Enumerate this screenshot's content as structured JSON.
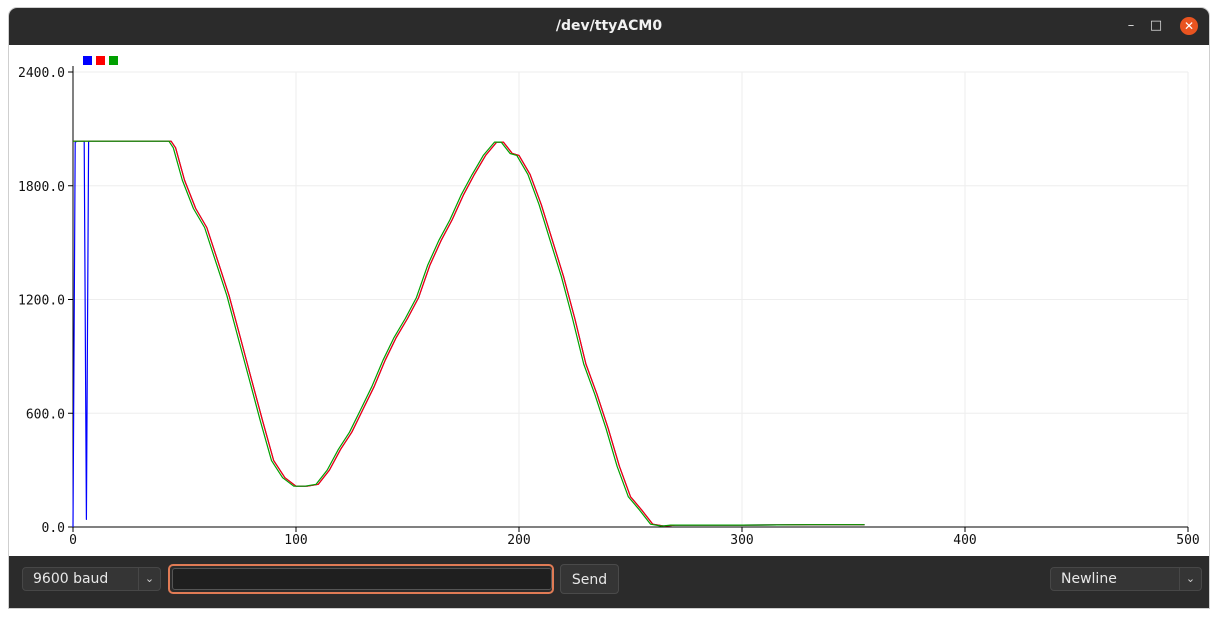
{
  "window": {
    "title": "/dev/ttyACM0",
    "controls": {
      "minimize": "–",
      "maximize": "□",
      "close": "✕"
    }
  },
  "toolbar": {
    "baud_value": "9600 baud",
    "line_ending_value": "Newline",
    "send_label": "Send",
    "message_value": ""
  },
  "icons": {
    "dropdown": "chevron-down-icon"
  },
  "chart_data": {
    "type": "line",
    "xlim": [
      0,
      500
    ],
    "ylim": [
      0,
      2400
    ],
    "x_ticks": [
      0,
      100,
      200,
      300,
      400,
      500
    ],
    "y_ticks": [
      0,
      600,
      1200,
      1800,
      2400
    ],
    "x_tick_labels": [
      "0",
      "100",
      "200",
      "300",
      "400",
      "500"
    ],
    "y_tick_labels": [
      "0.0",
      "600.0",
      "1200.0",
      "1800.0",
      "2400.0"
    ],
    "grid": true,
    "legend": "top-left",
    "series": [
      {
        "color": "#0000ff",
        "x": [
          0,
          1,
          2,
          5,
          6,
          7,
          10,
          20,
          30,
          40,
          44,
          46,
          50,
          55,
          60,
          65,
          70,
          75,
          80,
          85,
          90,
          95,
          100,
          105,
          110,
          115,
          120,
          125,
          130,
          135,
          140,
          145,
          150,
          155,
          160,
          165,
          170,
          175,
          180,
          185,
          190,
          193,
          197,
          200,
          205,
          210,
          215,
          220,
          225,
          230,
          235,
          240,
          245,
          250,
          255,
          260,
          265,
          270,
          300,
          330,
          355
        ],
        "y": [
          0,
          2030,
          2035,
          2035,
          40,
          2035,
          2035,
          2035,
          2035,
          2035,
          2035,
          2000,
          1830,
          1680,
          1580,
          1400,
          1220,
          1000,
          780,
          560,
          350,
          260,
          215,
          215,
          225,
          300,
          410,
          500,
          620,
          740,
          880,
          1000,
          1100,
          1210,
          1380,
          1510,
          1620,
          1750,
          1860,
          1960,
          2030,
          2030,
          1970,
          1960,
          1860,
          1700,
          1510,
          1320,
          1100,
          860,
          700,
          520,
          320,
          160,
          90,
          15,
          5,
          10,
          10,
          12,
          12
        ]
      },
      {
        "color": "#ff0000",
        "x": [
          0,
          1,
          2,
          10,
          20,
          30,
          40,
          44,
          46,
          50,
          55,
          60,
          65,
          70,
          75,
          80,
          85,
          90,
          95,
          100,
          105,
          110,
          115,
          120,
          125,
          130,
          135,
          140,
          145,
          150,
          155,
          160,
          165,
          170,
          175,
          180,
          185,
          190,
          193,
          197,
          200,
          205,
          210,
          215,
          220,
          225,
          230,
          235,
          240,
          245,
          250,
          255,
          260,
          265,
          270,
          300,
          330,
          355
        ],
        "y": [
          2035,
          2035,
          2035,
          2035,
          2035,
          2035,
          2035,
          2035,
          2000,
          1830,
          1680,
          1580,
          1400,
          1220,
          1000,
          780,
          560,
          350,
          260,
          215,
          215,
          225,
          300,
          410,
          500,
          620,
          740,
          880,
          1000,
          1100,
          1210,
          1380,
          1510,
          1620,
          1750,
          1860,
          1960,
          2030,
          2030,
          1970,
          1960,
          1860,
          1700,
          1510,
          1320,
          1100,
          860,
          700,
          520,
          320,
          160,
          90,
          15,
          5,
          10,
          10,
          12,
          12
        ]
      },
      {
        "color": "#00a000",
        "x": [
          0,
          1,
          2,
          10,
          20,
          30,
          40,
          43,
          45,
          49,
          54,
          59,
          64,
          69,
          74,
          79,
          84,
          89,
          94,
          99,
          104,
          109,
          114,
          119,
          124,
          129,
          134,
          139,
          144,
          149,
          154,
          159,
          164,
          169,
          174,
          179,
          184,
          189,
          192,
          196,
          199,
          204,
          209,
          214,
          219,
          224,
          229,
          234,
          239,
          244,
          249,
          254,
          259,
          264,
          268,
          300,
          330,
          355
        ],
        "y": [
          2035,
          2035,
          2035,
          2035,
          2035,
          2035,
          2035,
          2035,
          2000,
          1830,
          1680,
          1580,
          1400,
          1220,
          1000,
          780,
          560,
          350,
          260,
          215,
          215,
          225,
          300,
          410,
          500,
          620,
          740,
          880,
          1000,
          1100,
          1210,
          1380,
          1510,
          1620,
          1750,
          1860,
          1960,
          2030,
          2030,
          1970,
          1960,
          1860,
          1700,
          1510,
          1320,
          1100,
          860,
          700,
          520,
          320,
          160,
          90,
          15,
          5,
          10,
          10,
          12,
          12
        ]
      }
    ]
  }
}
